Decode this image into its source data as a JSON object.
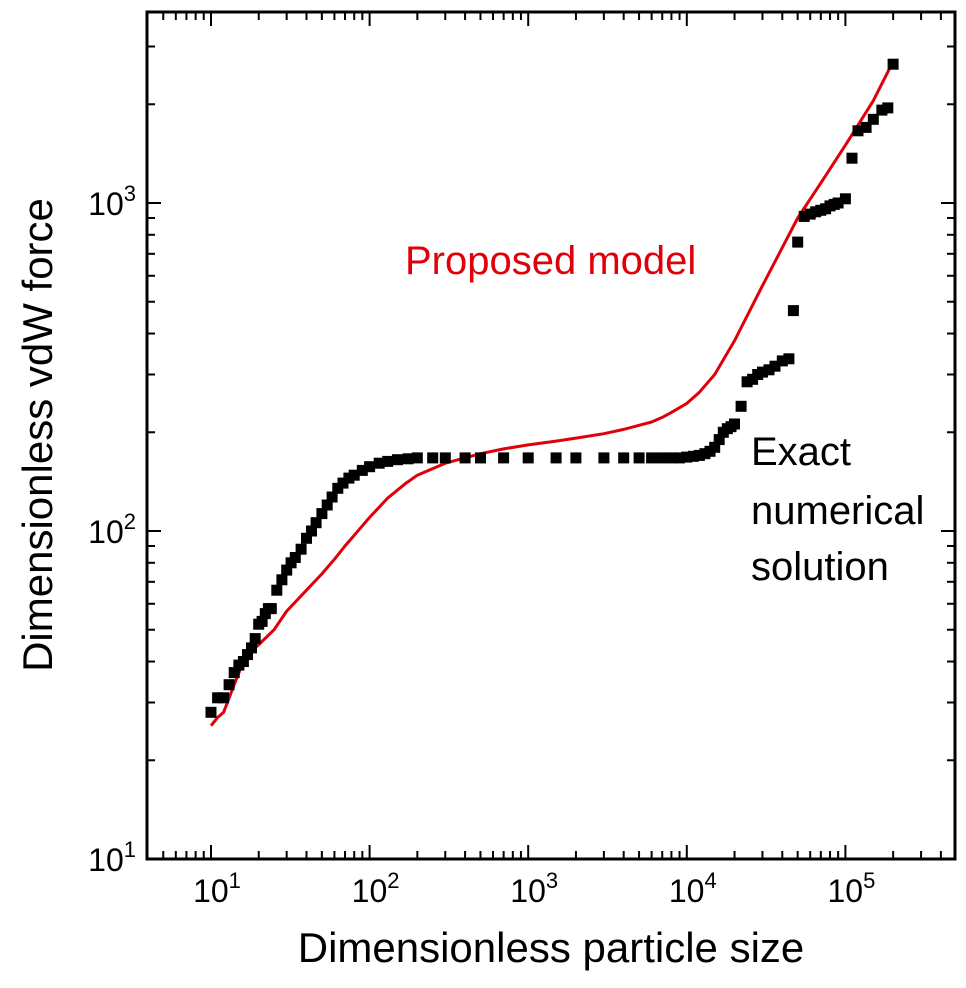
{
  "chart_data": {
    "type": "scatter",
    "x_scale": "log",
    "y_scale": "log",
    "xlabel": "Dimensionless particle size",
    "ylabel": "Dimensionless vdW force",
    "xlim": [
      4,
      1000000
    ],
    "ylim": [
      10,
      4000
    ],
    "x_ticks": [
      {
        "value": 10,
        "base": "10",
        "exp": "1"
      },
      {
        "value": 100,
        "base": "10",
        "exp": "2"
      },
      {
        "value": 1000,
        "base": "10",
        "exp": "3"
      },
      {
        "value": 10000,
        "base": "10",
        "exp": "4"
      },
      {
        "value": 100000,
        "base": "10",
        "exp": "5"
      }
    ],
    "y_ticks": [
      {
        "value": 10,
        "base": "10",
        "exp": "1"
      },
      {
        "value": 100,
        "base": "10",
        "exp": "2"
      },
      {
        "value": 1000,
        "base": "10",
        "exp": "3"
      }
    ],
    "series": [
      {
        "name": "Exact numerical solution",
        "kind": "markers",
        "color": "#000000",
        "x": [
          10,
          11,
          12,
          13,
          14,
          15,
          16,
          17,
          18,
          19,
          20,
          21,
          22,
          23,
          24,
          26,
          28,
          30,
          32,
          34,
          37,
          40,
          43,
          46,
          50,
          54,
          58,
          63,
          68,
          74,
          80,
          90,
          100,
          115,
          130,
          150,
          175,
          200,
          250,
          300,
          400,
          500,
          700,
          1000,
          1500,
          2000,
          3000,
          4000,
          5000,
          6000,
          7000,
          8000,
          9000,
          10000,
          11000,
          12000,
          13000,
          14000,
          15000,
          16000,
          17000,
          18000,
          19000,
          20000,
          22000,
          24000,
          26000,
          28000,
          30000,
          33000,
          36000,
          40000,
          44000,
          47000,
          50000,
          55000,
          60000,
          65000,
          70000,
          75000,
          80000,
          85000,
          90000,
          100000,
          110000,
          120000,
          135000,
          150000,
          170000,
          185000,
          200000
        ],
        "y": [
          28,
          31,
          31,
          34,
          37,
          39,
          40,
          42,
          44,
          47,
          52,
          53,
          56,
          58,
          58,
          66,
          71,
          76,
          80,
          83,
          88,
          95,
          100,
          106,
          113,
          120,
          127,
          135,
          140,
          145,
          148,
          153,
          157,
          161,
          163,
          165,
          166,
          167,
          167,
          167,
          167,
          167,
          167,
          167,
          167,
          167,
          167,
          167,
          167,
          167,
          167,
          167,
          167,
          168,
          169,
          170,
          172,
          175,
          180,
          190,
          200,
          205,
          208,
          212,
          240,
          285,
          290,
          300,
          305,
          310,
          318,
          330,
          335,
          470,
          760,
          910,
          925,
          940,
          950,
          960,
          980,
          990,
          1000,
          1030,
          1370,
          1660,
          1700,
          1800,
          1920,
          1950,
          2650
        ]
      },
      {
        "name": "Proposed model",
        "kind": "line",
        "color": "#e0000a",
        "x": [
          10,
          11,
          12,
          14,
          16,
          18,
          20,
          25,
          30,
          40,
          50,
          60,
          70,
          80,
          100,
          130,
          170,
          200,
          300,
          500,
          700,
          1000,
          1500,
          2000,
          3000,
          4000,
          5000,
          6000,
          7000,
          8000,
          10000,
          12000,
          15000,
          20000,
          30000,
          50000,
          70000,
          100000,
          150000,
          200000
        ],
        "y": [
          25.5,
          27,
          28,
          34,
          40,
          43,
          45,
          50,
          57,
          66,
          74,
          82,
          90,
          97,
          110,
          126,
          140,
          148,
          161,
          172,
          178,
          183,
          188,
          192,
          198,
          204,
          210,
          215,
          222,
          230,
          245,
          265,
          300,
          380,
          560,
          900,
          1150,
          1500,
          2050,
          2700
        ]
      }
    ],
    "annotations": [
      {
        "text": "Proposed model",
        "color": "#e0000a",
        "x": 2000,
        "y": 820
      },
      {
        "lines": [
          "Exact",
          "numerical",
          "solution"
        ],
        "color": "#000000",
        "x": 60000,
        "y": 150
      }
    ]
  }
}
